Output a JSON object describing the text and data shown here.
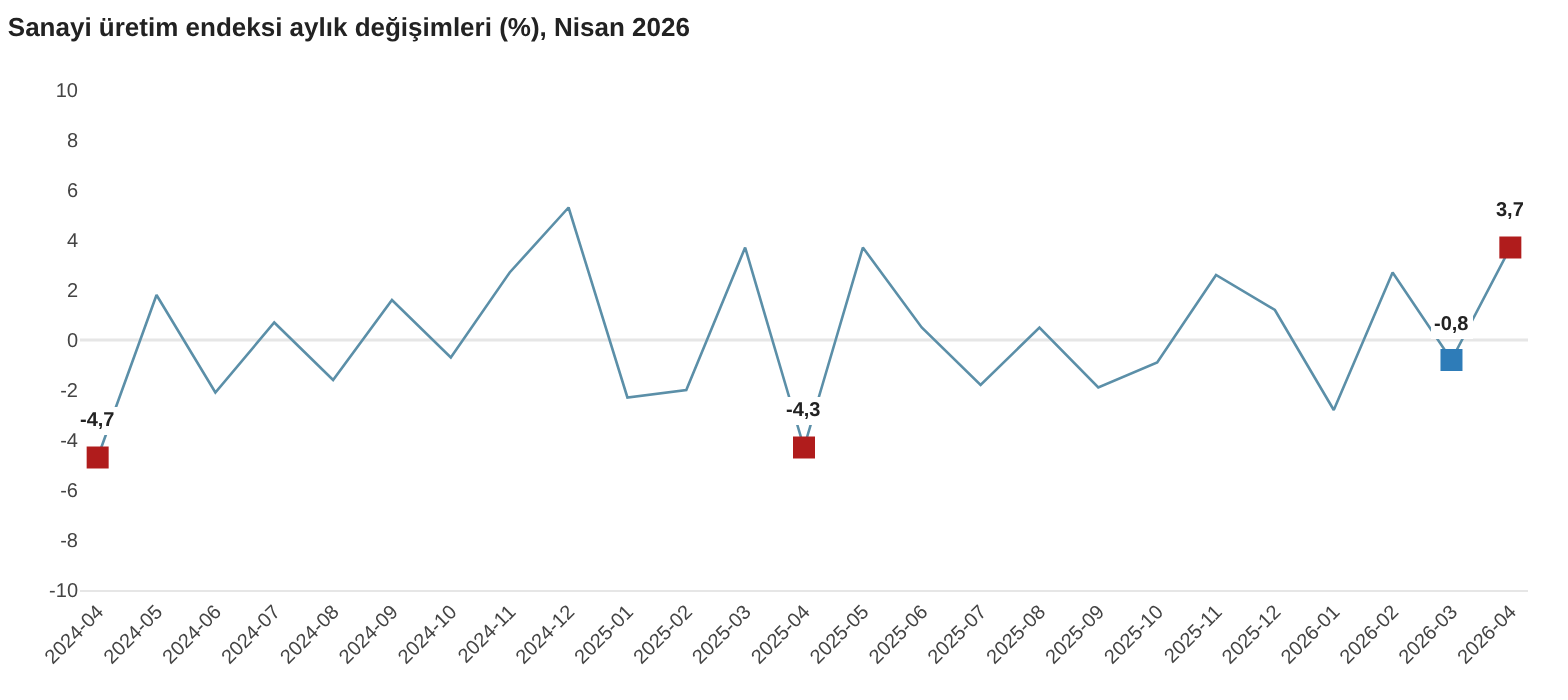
{
  "chart_data": {
    "type": "line",
    "title": "Sanayi üretim endeksi aylık değişimleri (%), Nisan 2026",
    "categories": [
      "2024-04",
      "2024-05",
      "2024-06",
      "2024-07",
      "2024-08",
      "2024-09",
      "2024-10",
      "2024-11",
      "2024-12",
      "2025-01",
      "2025-02",
      "2025-03",
      "2025-04",
      "2025-05",
      "2025-06",
      "2025-07",
      "2025-08",
      "2025-09",
      "2025-10",
      "2025-11",
      "2025-12",
      "2026-01",
      "2026-02",
      "2026-03",
      "2026-04"
    ],
    "series": [
      {
        "color": "#5b8fa8",
        "marker": "none",
        "values": [
          -4.7,
          1.8,
          -2.1,
          0.7,
          -1.6,
          1.6,
          -0.7,
          2.7,
          5.3,
          -2.3,
          -2.0,
          3.7,
          -4.3,
          3.7,
          0.5,
          -1.8,
          0.5,
          -1.9,
          -0.9,
          2.6,
          1.2,
          -2.8,
          2.7,
          -0.8,
          3.7
        ]
      },
      {
        "type": "scatter",
        "marker": "square",
        "values": [
          -4.7,
          null,
          null,
          null,
          null,
          null,
          null,
          null,
          null,
          null,
          null,
          null,
          -4.3,
          null,
          null,
          null,
          null,
          null,
          null,
          null,
          null,
          null,
          null,
          -0.8,
          3.7
        ],
        "colors": [
          "#b01c1c",
          null,
          null,
          null,
          null,
          null,
          null,
          null,
          null,
          null,
          null,
          null,
          "#b01c1c",
          null,
          null,
          null,
          null,
          null,
          null,
          null,
          null,
          null,
          null,
          "#2e7cb8",
          "#b01c1c"
        ],
        "value_labels": [
          "-4,7",
          null,
          null,
          null,
          null,
          null,
          null,
          null,
          null,
          null,
          null,
          null,
          "-4,3",
          null,
          null,
          null,
          null,
          null,
          null,
          null,
          null,
          null,
          null,
          "-0,8",
          "3,7"
        ]
      }
    ],
    "ylim": [
      -10,
      10
    ],
    "yticks": [
      -10,
      -8,
      -6,
      -4,
      -2,
      0,
      2,
      4,
      6,
      8,
      10
    ],
    "grid": false,
    "legend": false,
    "line_style": "solid",
    "ref_lines": [
      {
        "axis": "y",
        "value": 0,
        "color": "#e6e6e6"
      }
    ]
  }
}
